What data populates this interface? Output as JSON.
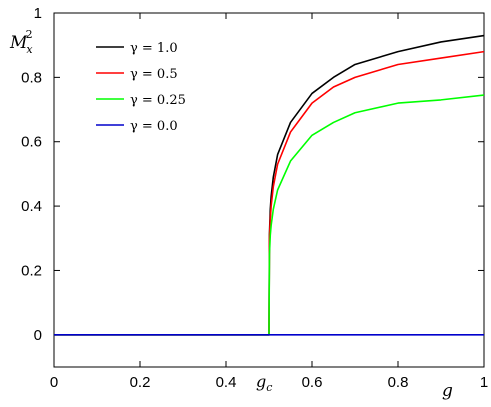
{
  "chart_data": {
    "type": "line",
    "xlabel": "g",
    "ylabel": "M",
    "ylabel_sub": "x",
    "ylabel_sup": "2",
    "xlim": [
      0,
      1
    ],
    "ylim": [
      -0.1,
      1
    ],
    "xticks": [
      0,
      0.2,
      0.4,
      0.6,
      0.8,
      1
    ],
    "xtick_labels": [
      "0",
      "0.2",
      "0.4",
      "0.6",
      "0.8",
      "1"
    ],
    "yticks": [
      0,
      0.2,
      0.4,
      0.6,
      0.8,
      1
    ],
    "ytick_labels": [
      "0",
      "0.2",
      "0.4",
      "0.6",
      "0.8",
      "1"
    ],
    "annotation": {
      "text": "g",
      "sub": "c",
      "x": 0.5
    },
    "grid": false,
    "legend_position": "top-left",
    "series": [
      {
        "name": "γ = 1.0",
        "color": "#000000",
        "x": [
          0,
          0.5,
          0.501,
          0.503,
          0.505,
          0.51,
          0.52,
          0.55,
          0.6,
          0.65,
          0.7,
          0.8,
          0.9,
          1.0
        ],
        "y": [
          0,
          0,
          0.31,
          0.39,
          0.43,
          0.49,
          0.56,
          0.66,
          0.75,
          0.8,
          0.84,
          0.88,
          0.91,
          0.93
        ]
      },
      {
        "name": "γ = 0.5",
        "color": "#ff0000",
        "x": [
          0,
          0.5,
          0.501,
          0.503,
          0.505,
          0.51,
          0.52,
          0.55,
          0.6,
          0.65,
          0.7,
          0.8,
          0.9,
          1.0
        ],
        "y": [
          0,
          0,
          0.3,
          0.36,
          0.4,
          0.46,
          0.53,
          0.63,
          0.72,
          0.77,
          0.8,
          0.84,
          0.86,
          0.88
        ]
      },
      {
        "name": "γ = 0.25",
        "color": "#00ff00",
        "x": [
          0,
          0.5,
          0.501,
          0.503,
          0.505,
          0.51,
          0.52,
          0.55,
          0.6,
          0.65,
          0.7,
          0.8,
          0.9,
          1.0
        ],
        "y": [
          0,
          0,
          0.25,
          0.31,
          0.34,
          0.39,
          0.45,
          0.54,
          0.62,
          0.66,
          0.69,
          0.72,
          0.73,
          0.745
        ]
      },
      {
        "name": "γ = 0.0",
        "color": "#0000cc",
        "x": [
          0,
          1
        ],
        "y": [
          0,
          0
        ]
      }
    ]
  }
}
